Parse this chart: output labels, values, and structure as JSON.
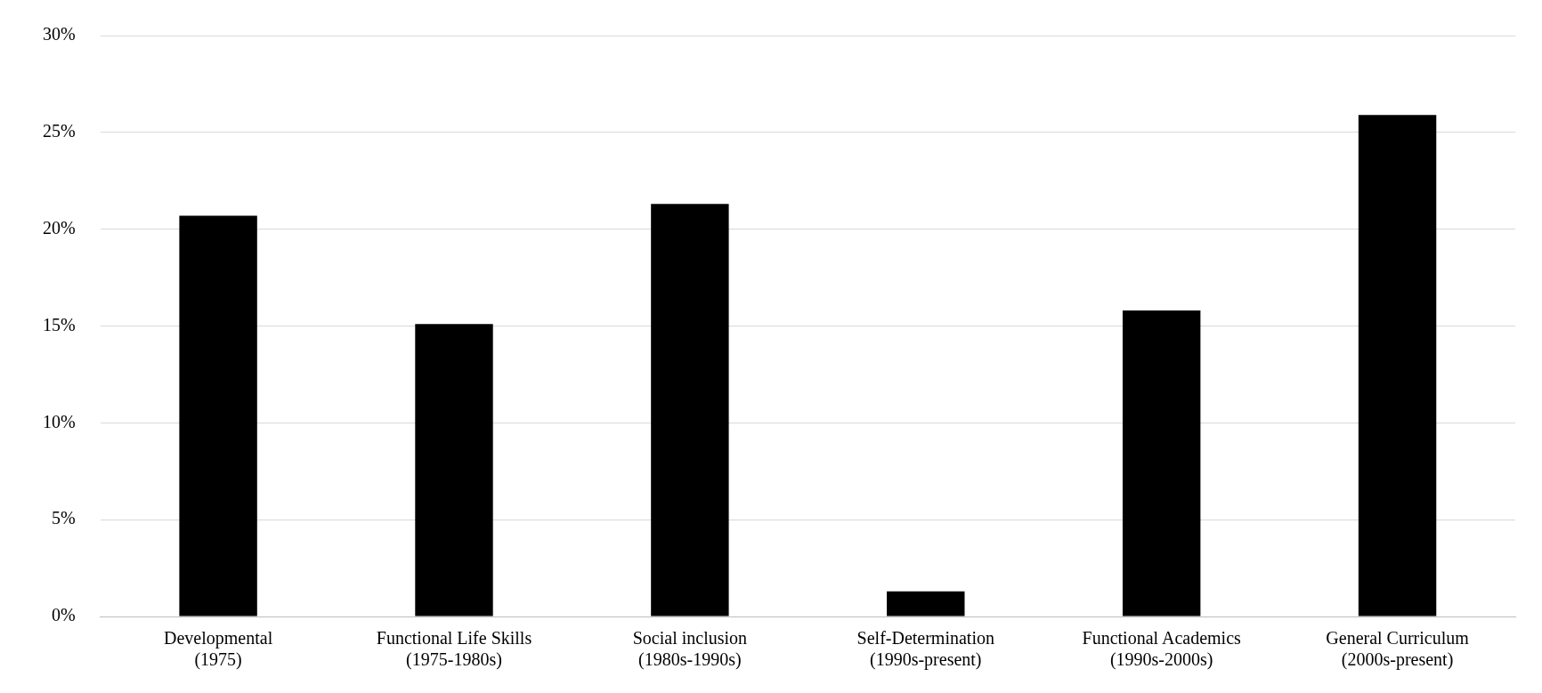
{
  "chart_data": {
    "type": "bar",
    "categories": [
      "Developmental\n(1975)",
      "Functional Life Skills\n(1975-1980s)",
      "Social inclusion\n(1980s-1990s)",
      "Self-Determination\n(1990s-present)",
      "Functional Academics\n(1990s-2000s)",
      "General Curriculum\n(2000s-present)"
    ],
    "values": [
      20.7,
      15.1,
      21.3,
      1.3,
      15.8,
      25.9
    ],
    "color": "#000000",
    "ylim": [
      0,
      30
    ],
    "yticks": [
      {
        "value": 0,
        "label": "0%"
      },
      {
        "value": 5,
        "label": "5%"
      },
      {
        "value": 10,
        "label": "10%"
      },
      {
        "value": 15,
        "label": "15%"
      },
      {
        "value": 20,
        "label": "20%"
      },
      {
        "value": 25,
        "label": "25%"
      },
      {
        "value": 30,
        "label": "30%"
      }
    ],
    "grid": "y"
  }
}
